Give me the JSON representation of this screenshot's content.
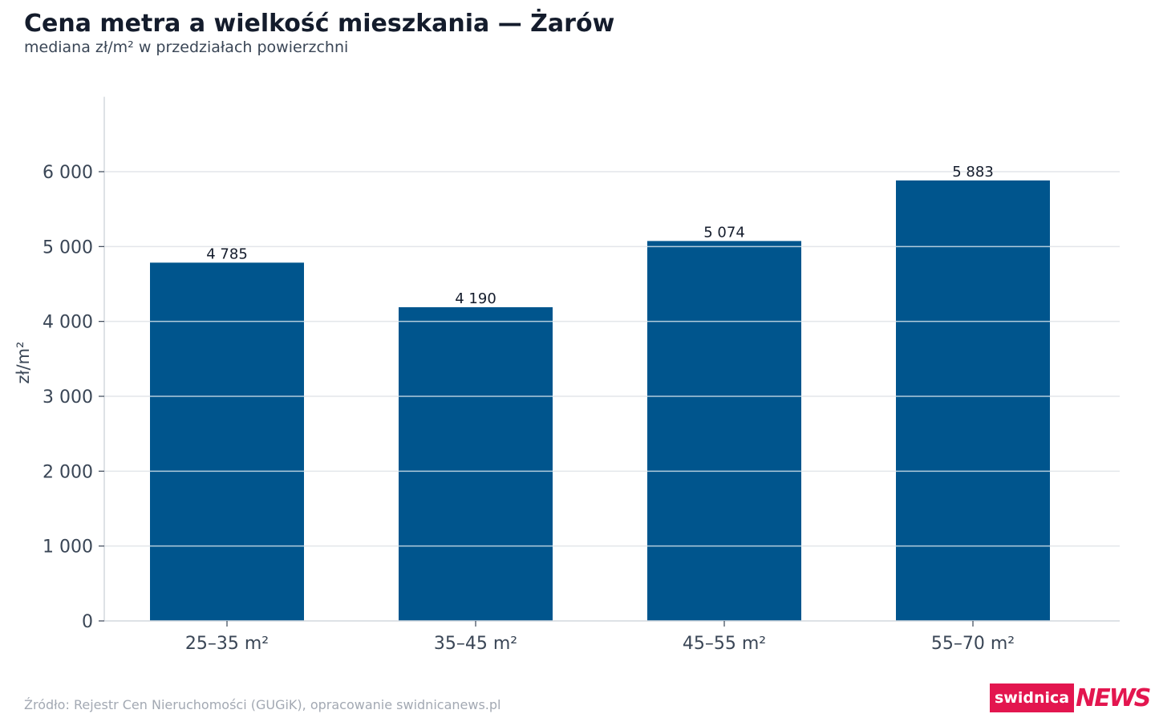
{
  "header": {
    "title": "Cena metra a wielkość mieszkania — Żarów",
    "subtitle": "mediana zł/m² w przedziałach powierzchni"
  },
  "footer": {
    "source": "Źródło: Rejestr Cen Nieruchomości (GUGiK), opracowanie swidnicanews.pl"
  },
  "logo": {
    "brand": "swidnica",
    "news": "NEWS"
  },
  "colors": {
    "bar": "#00558d",
    "grid": "#e3e6ea",
    "axis": "#d4d8de",
    "tick_text": "#3a4656",
    "label_text": "#141c2c",
    "logo": "#e3164f"
  },
  "chart_data": {
    "type": "bar",
    "categories": [
      "25–35 m²",
      "35–45 m²",
      "45–55 m²",
      "55–70 m²"
    ],
    "values": [
      4785,
      4190,
      5074,
      5883
    ],
    "value_labels": [
      "4 785",
      "4 190",
      "5 074",
      "5 883"
    ],
    "ylabel": "zł/m²",
    "ylim": [
      0,
      7000
    ],
    "yticks": [
      0,
      1000,
      2000,
      3000,
      4000,
      5000,
      6000
    ],
    "ytick_labels": [
      "0",
      "1 000",
      "2 000",
      "3 000",
      "4 000",
      "5 000",
      "6 000"
    ],
    "grid": true,
    "legend": false
  }
}
